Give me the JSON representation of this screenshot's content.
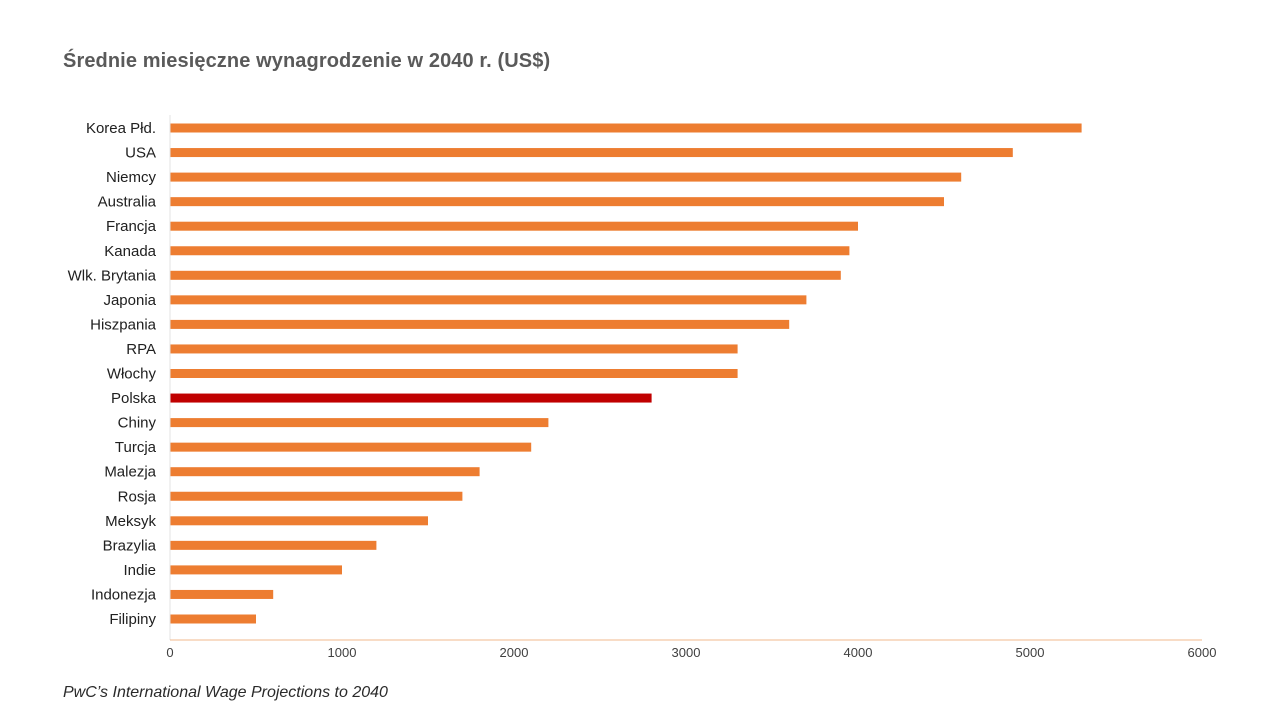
{
  "chart_data": {
    "type": "bar",
    "orientation": "horizontal",
    "title": "Średnie miesięczne wynagrodzenie  w 2040 r. (US$)",
    "source": "PwC’s International Wage Projections to 2040",
    "categories": [
      "Korea Płd.",
      "USA",
      "Niemcy",
      "Australia",
      "Francja",
      "Kanada",
      "Wlk. Brytania",
      "Japonia",
      "Hiszpania",
      "RPA",
      "Włochy",
      "Polska",
      "Chiny",
      "Turcja",
      "Malezja",
      "Rosja",
      "Meksyk",
      "Brazylia",
      "Indie",
      "Indonezja",
      "Filipiny"
    ],
    "values": [
      5300,
      4900,
      4600,
      4500,
      4000,
      3950,
      3900,
      3700,
      3600,
      3300,
      3300,
      2800,
      2200,
      2100,
      1800,
      1700,
      1500,
      1200,
      1000,
      600,
      500
    ],
    "xlim": [
      0,
      6000
    ],
    "xticks": [
      "0",
      "1000",
      "2000",
      "3000",
      "4000",
      "5000",
      "6000"
    ],
    "grid": false,
    "legend": "none",
    "colors": {
      "bar": "#ED7D31",
      "highlight": "#C00000",
      "axis": "#F0B98E"
    },
    "highlight_category": "Polska"
  }
}
